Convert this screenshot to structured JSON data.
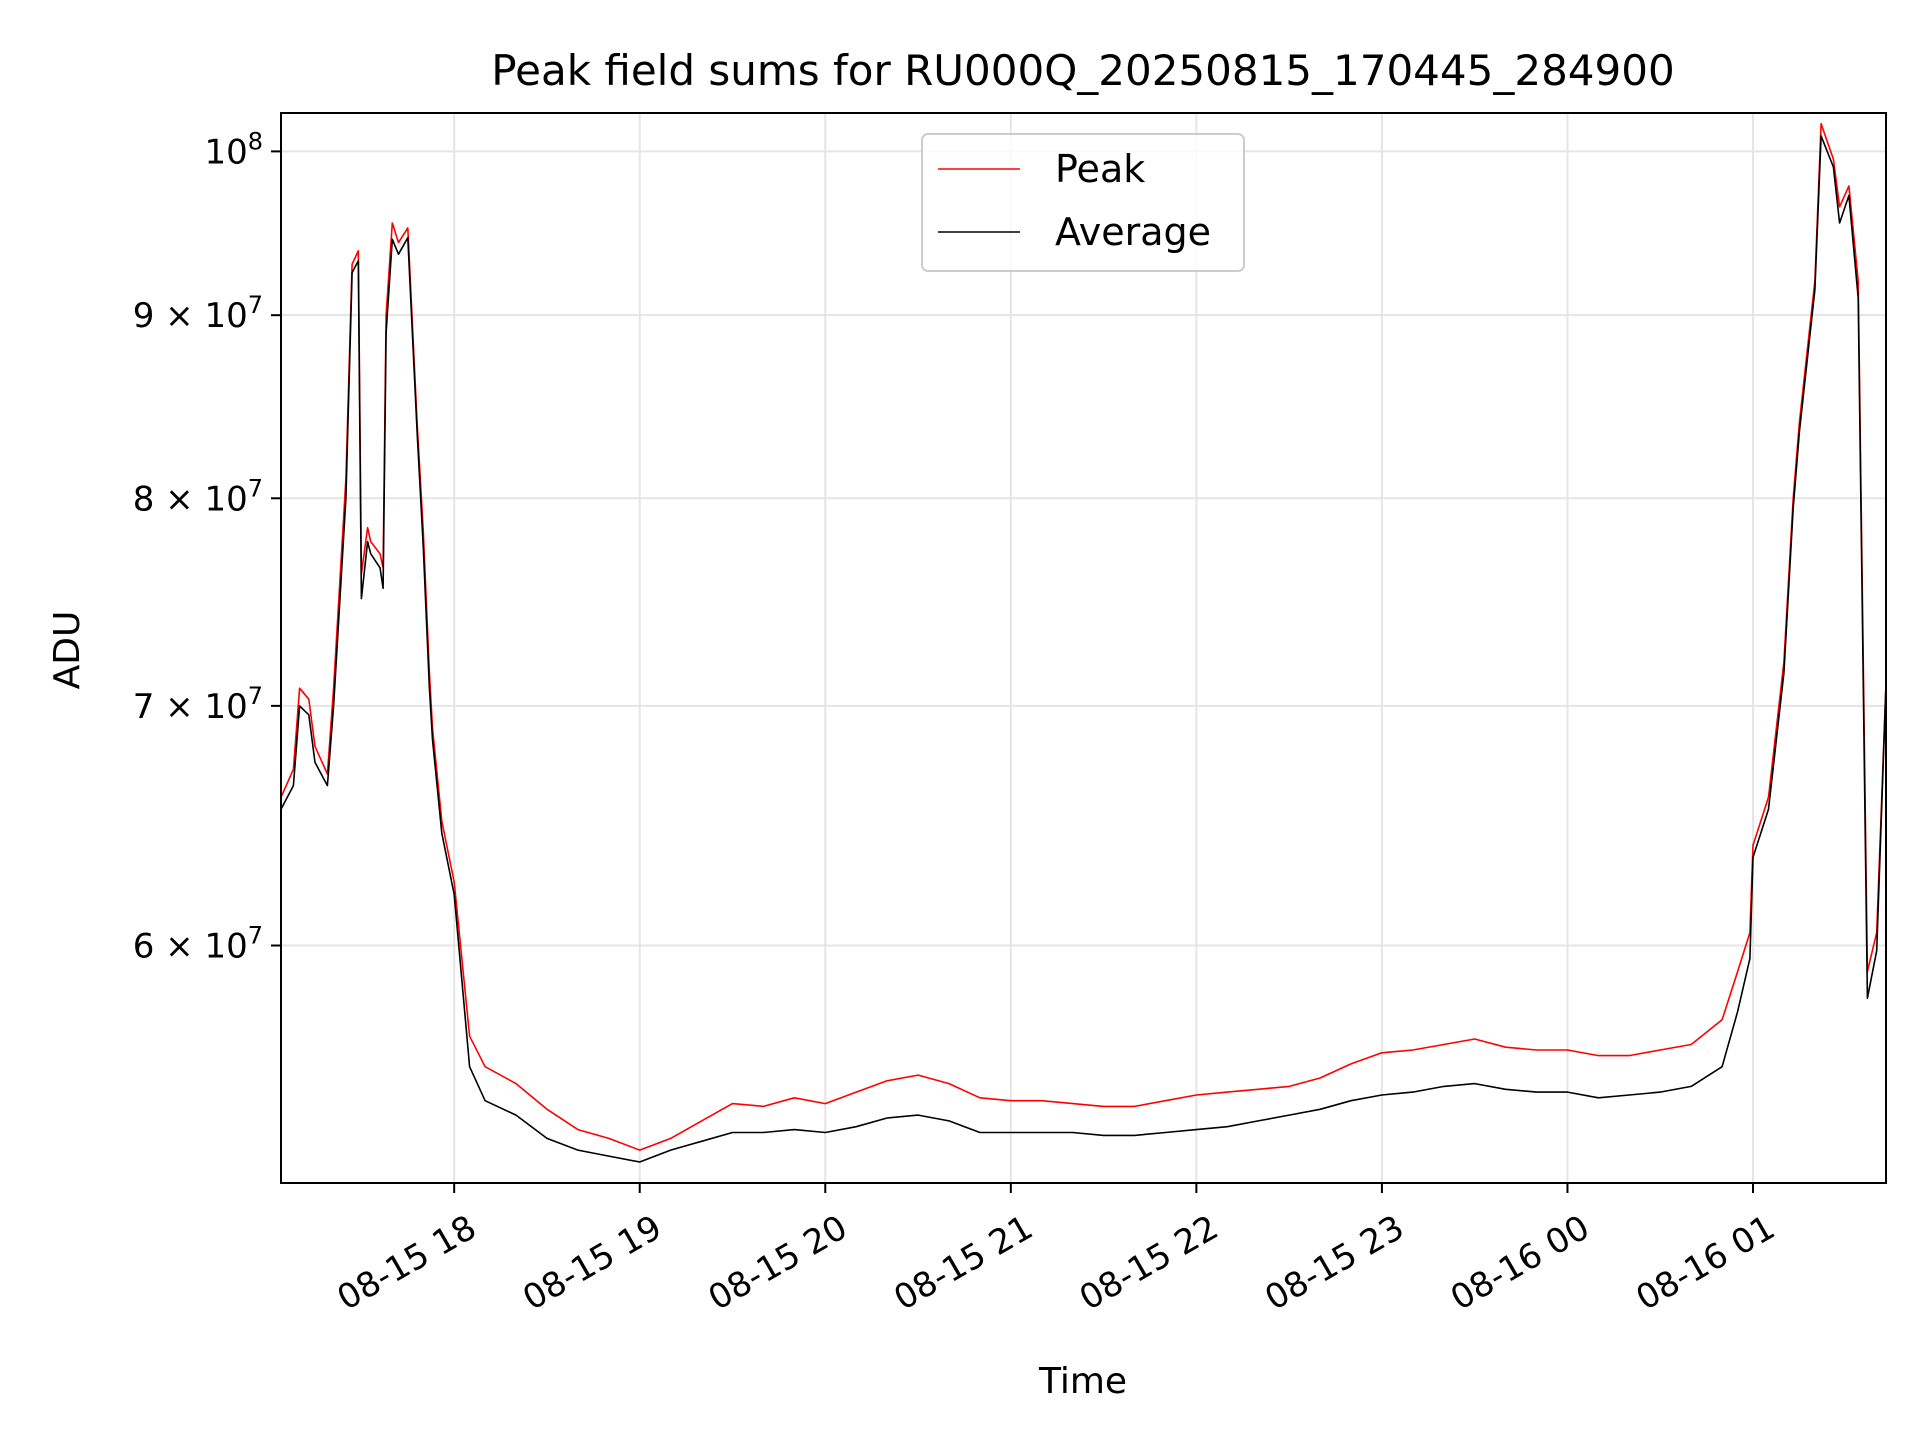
{
  "chart_data": {
    "type": "line",
    "title": "Peak field sums for RU000Q_20250815_170445_284900",
    "xlabel": "Time",
    "ylabel": "ADU",
    "y_scale": "log",
    "grid": true,
    "legend_position": "top-center",
    "xlim": [
      "2025-08-15 17:04",
      "2025-08-16 01:43"
    ],
    "ylim": [
      51500000,
      102500000
    ],
    "x_ticks": [
      {
        "value": "2025-08-15 18:00",
        "label": "08-15 18"
      },
      {
        "value": "2025-08-15 19:00",
        "label": "08-15 19"
      },
      {
        "value": "2025-08-15 20:00",
        "label": "08-15 20"
      },
      {
        "value": "2025-08-15 21:00",
        "label": "08-15 21"
      },
      {
        "value": "2025-08-15 22:00",
        "label": "08-15 22"
      },
      {
        "value": "2025-08-15 23:00",
        "label": "08-15 23"
      },
      {
        "value": "2025-08-16 00:00",
        "label": "08-16 00"
      },
      {
        "value": "2025-08-16 01:00",
        "label": "08-16 01"
      }
    ],
    "y_ticks": [
      {
        "value": 60000000,
        "mantissa": "6",
        "exponent": "7"
      },
      {
        "value": 70000000,
        "mantissa": "7",
        "exponent": "7"
      },
      {
        "value": 80000000,
        "mantissa": "8",
        "exponent": "7"
      },
      {
        "value": 90000000,
        "mantissa": "9",
        "exponent": "7"
      },
      {
        "value": 100000000,
        "mantissa": "",
        "exponent": "8"
      }
    ],
    "series": [
      {
        "name": "Peak",
        "color": "#ff0000",
        "x": [
          "2025-08-15 17:04",
          "2025-08-15 17:08",
          "2025-08-15 17:10",
          "2025-08-15 17:13",
          "2025-08-15 17:15",
          "2025-08-15 17:19",
          "2025-08-15 17:21",
          "2025-08-15 17:25",
          "2025-08-15 17:27",
          "2025-08-15 17:29",
          "2025-08-15 17:30",
          "2025-08-15 17:32",
          "2025-08-15 17:33",
          "2025-08-15 17:36",
          "2025-08-15 17:37",
          "2025-08-15 17:38",
          "2025-08-15 17:40",
          "2025-08-15 17:42",
          "2025-08-15 17:45",
          "2025-08-15 17:48",
          "2025-08-15 17:50",
          "2025-08-15 17:52",
          "2025-08-15 17:53",
          "2025-08-15 17:56",
          "2025-08-15 18:00",
          "2025-08-15 18:05",
          "2025-08-15 18:10",
          "2025-08-15 18:20",
          "2025-08-15 18:30",
          "2025-08-15 18:40",
          "2025-08-15 18:50",
          "2025-08-15 19:00",
          "2025-08-15 19:10",
          "2025-08-15 19:20",
          "2025-08-15 19:30",
          "2025-08-15 19:40",
          "2025-08-15 19:50",
          "2025-08-15 20:00",
          "2025-08-15 20:10",
          "2025-08-15 20:20",
          "2025-08-15 20:30",
          "2025-08-15 20:40",
          "2025-08-15 20:50",
          "2025-08-15 21:00",
          "2025-08-15 21:10",
          "2025-08-15 21:20",
          "2025-08-15 21:30",
          "2025-08-15 21:40",
          "2025-08-15 21:50",
          "2025-08-15 22:00",
          "2025-08-15 22:10",
          "2025-08-15 22:20",
          "2025-08-15 22:30",
          "2025-08-15 22:40",
          "2025-08-15 22:50",
          "2025-08-15 23:00",
          "2025-08-15 23:10",
          "2025-08-15 23:20",
          "2025-08-15 23:30",
          "2025-08-15 23:40",
          "2025-08-15 23:50",
          "2025-08-16 00:00",
          "2025-08-16 00:10",
          "2025-08-16 00:20",
          "2025-08-16 00:30",
          "2025-08-16 00:40",
          "2025-08-16 00:50",
          "2025-08-16 00:55",
          "2025-08-16 00:59",
          "2025-08-16 01:00",
          "2025-08-16 01:05",
          "2025-08-16 01:10",
          "2025-08-16 01:13",
          "2025-08-16 01:15",
          "2025-08-16 01:20",
          "2025-08-16 01:22",
          "2025-08-16 01:26",
          "2025-08-16 01:28",
          "2025-08-16 01:31",
          "2025-08-16 01:34",
          "2025-08-16 01:37",
          "2025-08-16 01:40",
          "2025-08-16 01:43"
        ],
        "values": [
          66000000,
          67200000,
          70800000,
          70300000,
          68200000,
          67000000,
          70800000,
          81000000,
          93000000,
          93800000,
          76200000,
          78500000,
          77800000,
          77200000,
          76500000,
          90000000,
          95500000,
          94300000,
          95200000,
          84000000,
          78300000,
          71500000,
          69000000,
          65000000,
          62500000,
          56600000,
          55500000,
          54900000,
          54000000,
          53300000,
          53000000,
          52600000,
          53000000,
          53600000,
          54200000,
          54100000,
          54400000,
          54200000,
          54600000,
          55000000,
          55200000,
          54900000,
          54400000,
          54300000,
          54300000,
          54200000,
          54100000,
          54100000,
          54300000,
          54500000,
          54600000,
          54700000,
          54800000,
          55100000,
          55600000,
          56000000,
          56100000,
          56300000,
          56500000,
          56200000,
          56100000,
          56100000,
          55900000,
          55900000,
          56100000,
          56300000,
          57200000,
          59000000,
          60500000,
          64000000,
          66000000,
          72000000,
          80000000,
          84000000,
          92000000,
          101800000,
          99500000,
          96500000,
          97800000,
          92000000,
          59000000,
          60500000,
          71000000
        ]
      },
      {
        "name": "Average",
        "color": "#000000",
        "x": [
          "2025-08-15 17:04",
          "2025-08-15 17:08",
          "2025-08-15 17:10",
          "2025-08-15 17:13",
          "2025-08-15 17:15",
          "2025-08-15 17:19",
          "2025-08-15 17:21",
          "2025-08-15 17:25",
          "2025-08-15 17:27",
          "2025-08-15 17:29",
          "2025-08-15 17:30",
          "2025-08-15 17:32",
          "2025-08-15 17:33",
          "2025-08-15 17:36",
          "2025-08-15 17:37",
          "2025-08-15 17:38",
          "2025-08-15 17:40",
          "2025-08-15 17:42",
          "2025-08-15 17:45",
          "2025-08-15 17:48",
          "2025-08-15 17:50",
          "2025-08-15 17:52",
          "2025-08-15 17:53",
          "2025-08-15 17:56",
          "2025-08-15 18:00",
          "2025-08-15 18:05",
          "2025-08-15 18:10",
          "2025-08-15 18:20",
          "2025-08-15 18:30",
          "2025-08-15 18:40",
          "2025-08-15 18:50",
          "2025-08-15 19:00",
          "2025-08-15 19:10",
          "2025-08-15 19:20",
          "2025-08-15 19:30",
          "2025-08-15 19:40",
          "2025-08-15 19:50",
          "2025-08-15 20:00",
          "2025-08-15 20:10",
          "2025-08-15 20:20",
          "2025-08-15 20:30",
          "2025-08-15 20:40",
          "2025-08-15 20:50",
          "2025-08-15 21:00",
          "2025-08-15 21:10",
          "2025-08-15 21:20",
          "2025-08-15 21:30",
          "2025-08-15 21:40",
          "2025-08-15 21:50",
          "2025-08-15 22:00",
          "2025-08-15 22:10",
          "2025-08-15 22:20",
          "2025-08-15 22:30",
          "2025-08-15 22:40",
          "2025-08-15 22:50",
          "2025-08-15 23:00",
          "2025-08-15 23:10",
          "2025-08-15 23:20",
          "2025-08-15 23:30",
          "2025-08-15 23:40",
          "2025-08-15 23:50",
          "2025-08-16 00:00",
          "2025-08-16 00:10",
          "2025-08-16 00:20",
          "2025-08-16 00:30",
          "2025-08-16 00:40",
          "2025-08-16 00:50",
          "2025-08-16 00:55",
          "2025-08-16 00:59",
          "2025-08-16 01:00",
          "2025-08-16 01:05",
          "2025-08-16 01:10",
          "2025-08-16 01:13",
          "2025-08-16 01:15",
          "2025-08-16 01:20",
          "2025-08-16 01:22",
          "2025-08-16 01:26",
          "2025-08-16 01:28",
          "2025-08-16 01:31",
          "2025-08-16 01:34",
          "2025-08-16 01:37",
          "2025-08-16 01:40",
          "2025-08-16 01:43"
        ],
        "values": [
          65500000,
          66500000,
          70000000,
          69600000,
          67500000,
          66500000,
          70000000,
          80000000,
          92500000,
          93200000,
          75000000,
          77800000,
          77200000,
          76500000,
          75500000,
          89000000,
          94500000,
          93600000,
          94600000,
          83500000,
          77500000,
          70800000,
          68500000,
          64500000,
          62000000,
          55500000,
          54300000,
          53800000,
          53000000,
          52600000,
          52400000,
          52200000,
          52600000,
          52900000,
          53200000,
          53200000,
          53300000,
          53200000,
          53400000,
          53700000,
          53800000,
          53600000,
          53200000,
          53200000,
          53200000,
          53200000,
          53100000,
          53100000,
          53200000,
          53300000,
          53400000,
          53600000,
          53800000,
          54000000,
          54300000,
          54500000,
          54600000,
          54800000,
          54900000,
          54700000,
          54600000,
          54600000,
          54400000,
          54500000,
          54600000,
          54800000,
          55500000,
          57500000,
          59500000,
          63500000,
          65500000,
          71500000,
          79500000,
          83500000,
          91500000,
          101000000,
          99000000,
          95500000,
          97200000,
          91000000,
          58000000,
          59800000,
          71000000
        ]
      }
    ]
  }
}
